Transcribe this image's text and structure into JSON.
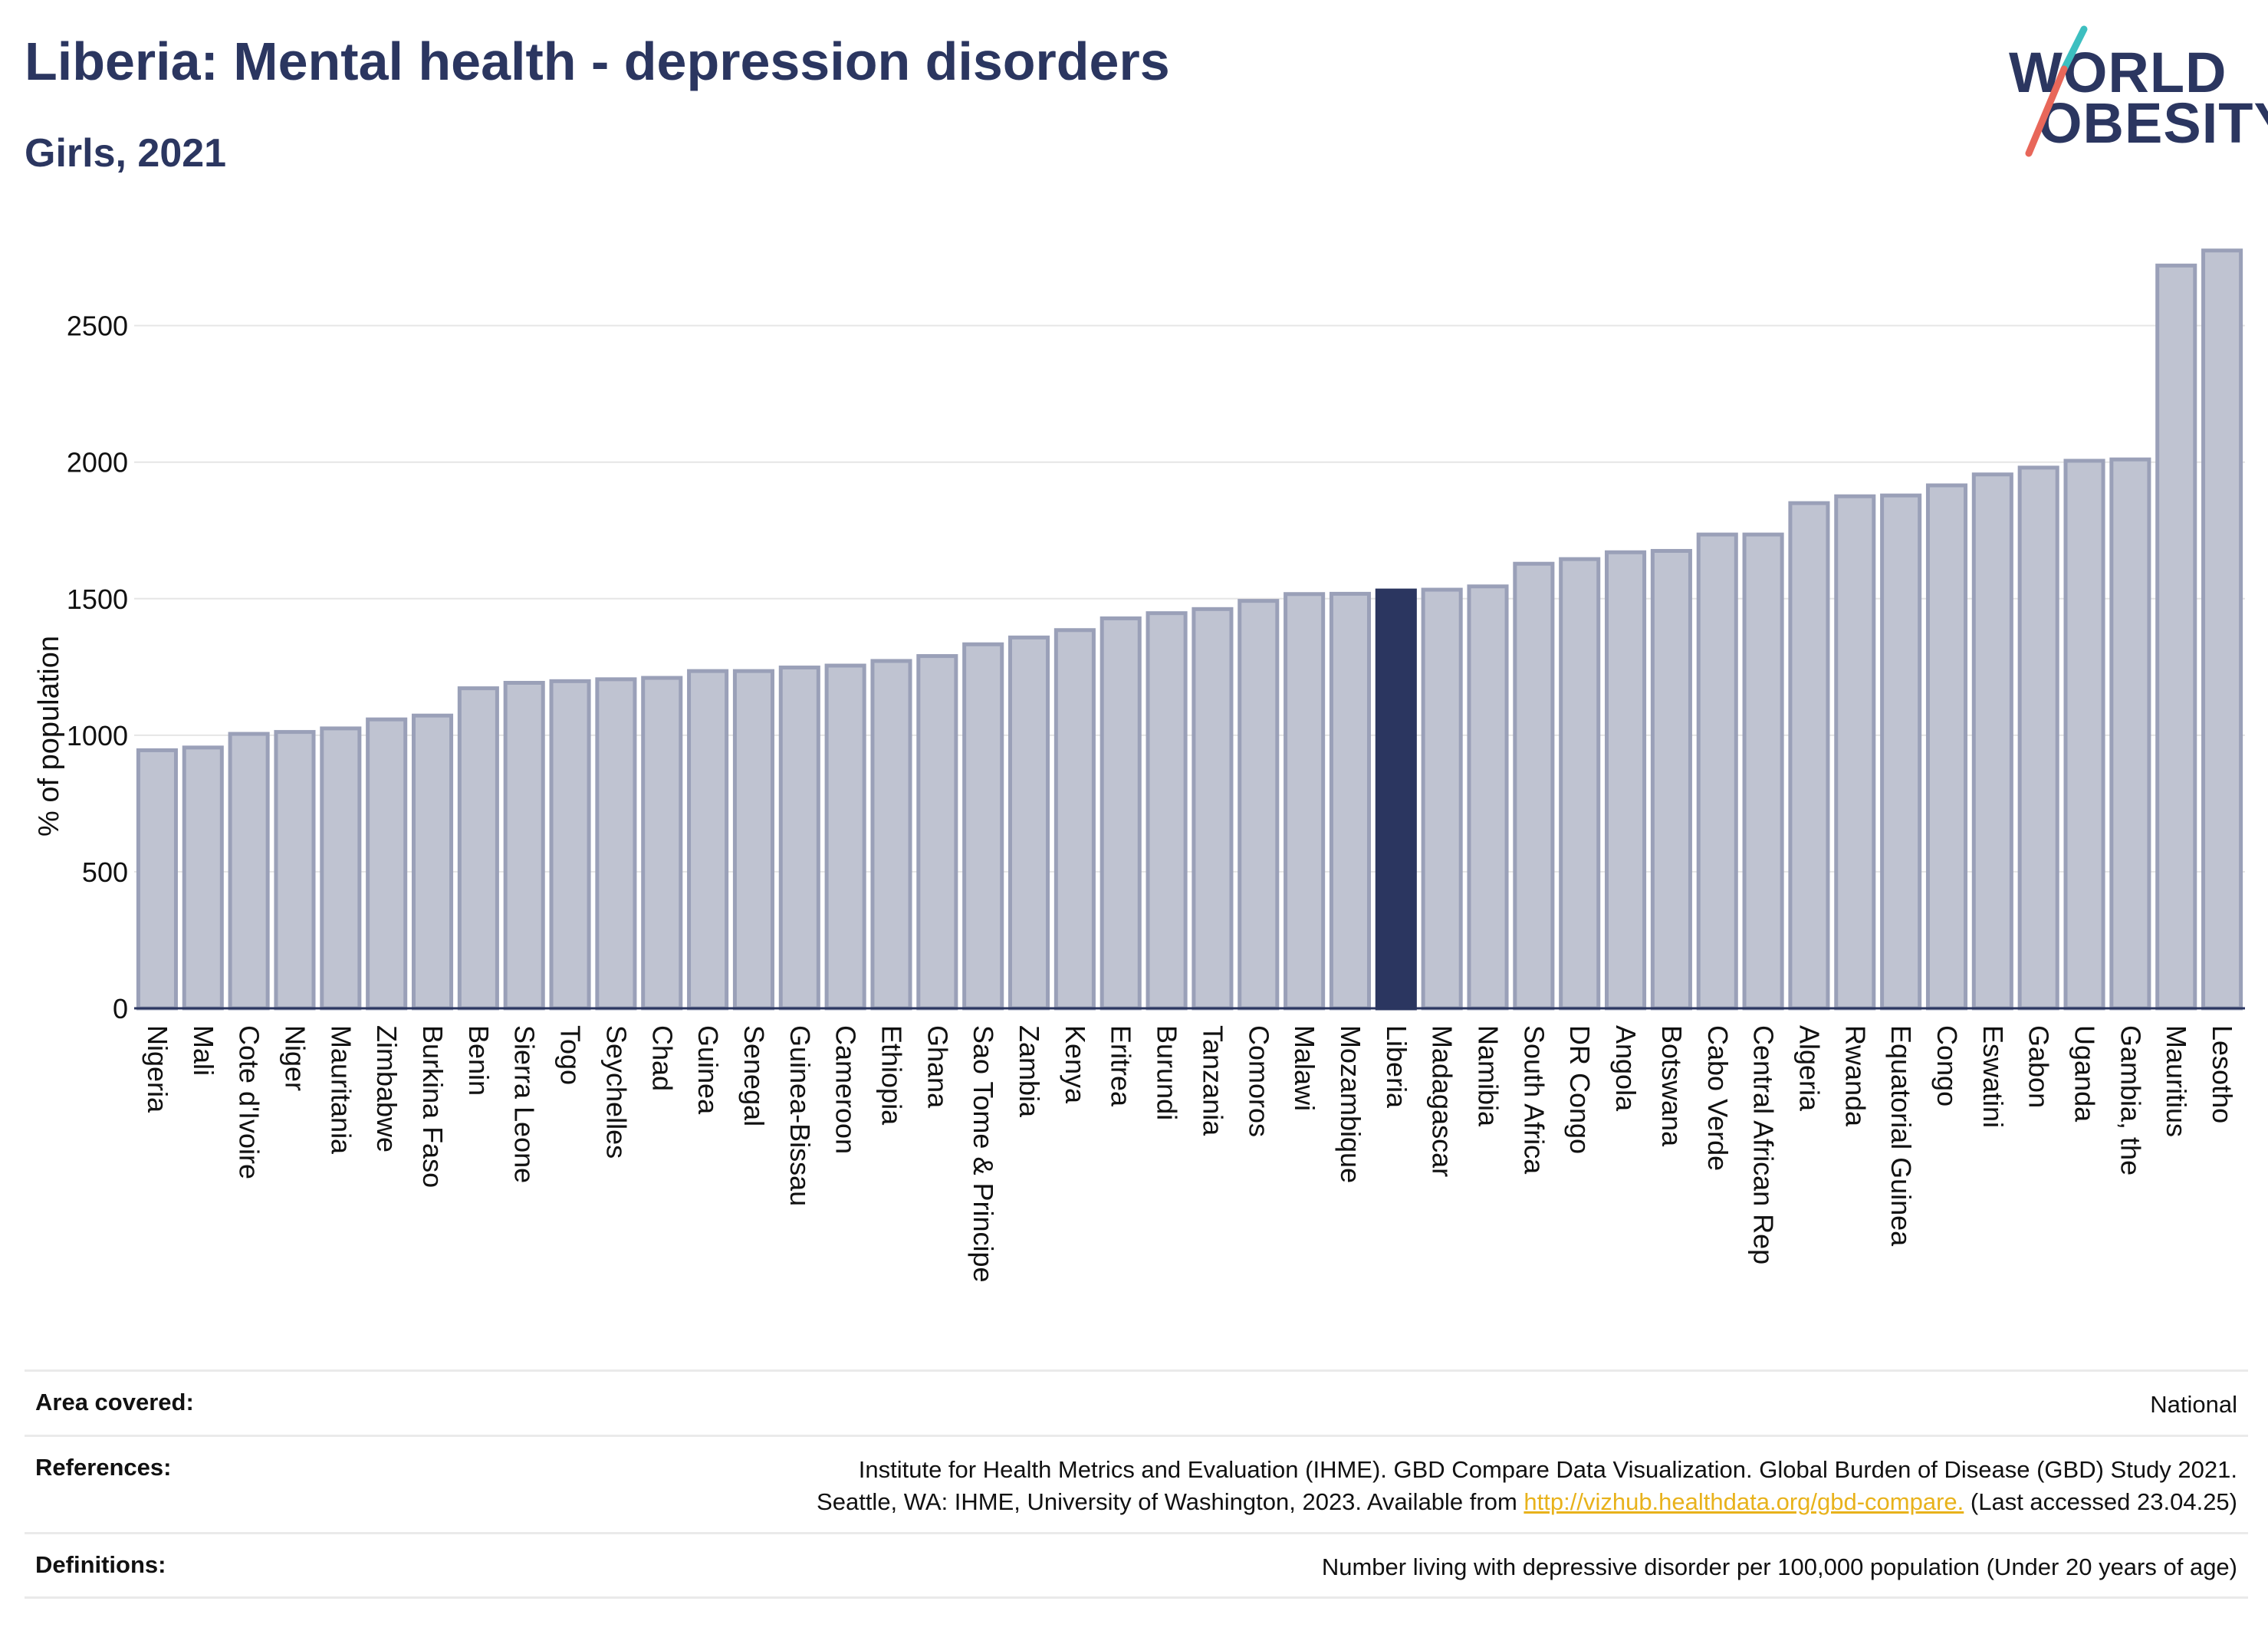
{
  "header": {
    "title": "Liberia: Mental health - depression disorders",
    "subtitle": "Girls, 2021"
  },
  "logo": {
    "line1": "WORLD",
    "line2": "OBESITY",
    "colors": {
      "text": "#2b3660",
      "slash_top": "#3dbfc0",
      "slash_bottom": "#e8675a"
    }
  },
  "colors": {
    "bar": "#bfc3d1",
    "bar_border": "#9aa0b8",
    "highlight": "#2b3660",
    "axis": "#2b3660",
    "grid": "#e6e6e6",
    "link": "#e8b21b"
  },
  "chart_data": {
    "type": "bar",
    "title": "Liberia: Mental health - depression disorders",
    "subtitle": "Girls, 2021",
    "ylabel": "% of population",
    "xlabel": "",
    "ylim": [
      0,
      2850
    ],
    "yticks": [
      0,
      500,
      1000,
      1500,
      2000,
      2500
    ],
    "grid": true,
    "highlight": "Liberia",
    "categories": [
      "Nigeria",
      "Mali",
      "Cote d'Ivoire",
      "Niger",
      "Mauritania",
      "Zimbabwe",
      "Burkina Faso",
      "Benin",
      "Sierra Leone",
      "Togo",
      "Seychelles",
      "Chad",
      "Guinea",
      "Senegal",
      "Guinea-Bissau",
      "Cameroon",
      "Ethiopia",
      "Ghana",
      "Sao Tome & Principe",
      "Zambia",
      "Kenya",
      "Eritrea",
      "Burundi",
      "Tanzania",
      "Comoros",
      "Malawi",
      "Mozambique",
      "Liberia",
      "Madagascar",
      "Namibia",
      "South Africa",
      "DR Congo",
      "Angola",
      "Botswana",
      "Cabo Verde",
      "Central African Rep",
      "Algeria",
      "Rwanda",
      "Equatorial Guinea",
      "Congo",
      "Eswatini",
      "Gabon",
      "Uganda",
      "Gambia, the",
      "Mauritius",
      "Lesotho"
    ],
    "values": [
      945,
      955,
      1005,
      1012,
      1025,
      1058,
      1072,
      1172,
      1192,
      1198,
      1205,
      1210,
      1235,
      1235,
      1248,
      1255,
      1272,
      1290,
      1333,
      1358,
      1385,
      1428,
      1447,
      1462,
      1492,
      1517,
      1518,
      1530,
      1533,
      1545,
      1628,
      1645,
      1670,
      1675,
      1735,
      1735,
      1850,
      1875,
      1878,
      1915,
      1955,
      1980,
      2005,
      2010,
      2720,
      2775
    ]
  },
  "meta": {
    "area_label": "Area covered:",
    "area_value": "National",
    "references_label": "References:",
    "references_line1": "Institute for Health Metrics and Evaluation (IHME). GBD Compare Data Visualization. Global Burden of Disease (GBD) Study 2021.",
    "references_line2_pre": "Seattle, WA: IHME, University of Washington, 2023. Available from ",
    "references_link": "http://vizhub.healthdata.org/gbd-compare.",
    "references_line2_post": " (Last accessed 23.04.25)",
    "definitions_label": "Definitions:",
    "definitions_value": "Number living with depressive disorder per 100,000 population (Under 20 years of age)"
  }
}
